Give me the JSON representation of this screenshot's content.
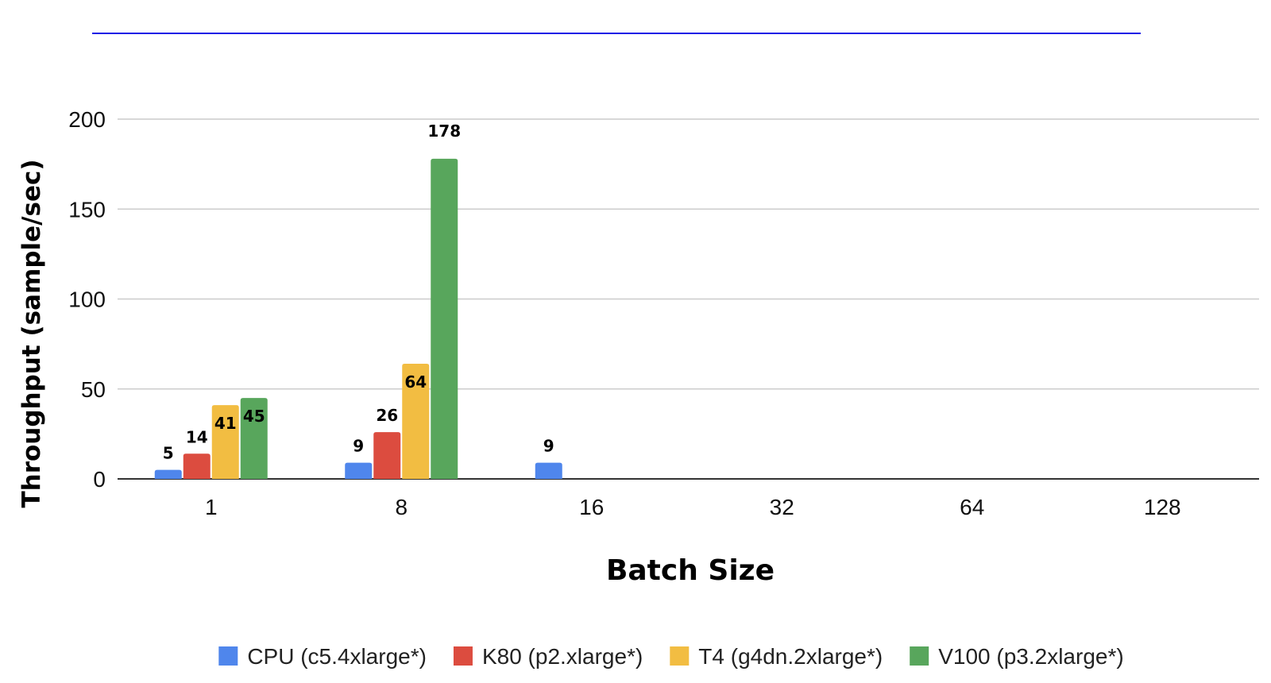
{
  "chart_data": {
    "type": "bar",
    "categories": [
      "1",
      "8",
      "16",
      "32",
      "64",
      "128"
    ],
    "series": [
      {
        "name": "CPU (c5.4xlarge*)",
        "values": [
          5,
          9,
          9,
          null,
          null,
          null
        ]
      },
      {
        "name": "K80 (p2.xlarge*)",
        "values": [
          14,
          26,
          null,
          null,
          null,
          null
        ]
      },
      {
        "name": "T4 (g4dn.2xlarge*)",
        "values": [
          41,
          64,
          null,
          null,
          null,
          null
        ]
      },
      {
        "name": "V100 (p3.2xlarge*)",
        "values": [
          45,
          178,
          null,
          null,
          null,
          null
        ]
      }
    ],
    "colors": [
      "#4f86ec",
      "#dc4c3f",
      "#f2bd42",
      "#58a65c"
    ],
    "xlabel": "Batch Size",
    "ylabel": "Throughput  (sample/sec)",
    "ylim": [
      0,
      200
    ],
    "yticks": [
      0,
      50,
      100,
      150,
      200
    ],
    "grid": true,
    "legend": "bottom",
    "title_rule_color": "#1a1ae6"
  }
}
